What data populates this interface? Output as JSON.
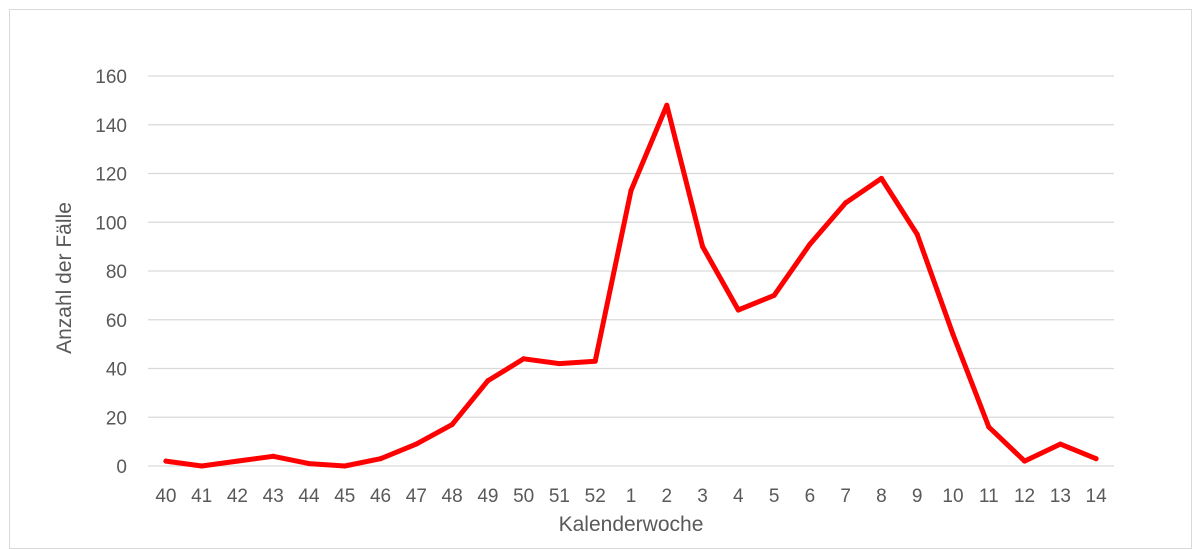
{
  "chart_data": {
    "type": "line",
    "title": "",
    "xlabel": "Kalenderwoche",
    "ylabel": "Anzahl der Fälle",
    "ylim": [
      0,
      160
    ],
    "yticks": [
      0,
      20,
      40,
      60,
      80,
      100,
      120,
      140,
      160
    ],
    "grid": true,
    "categories": [
      "40",
      "41",
      "42",
      "43",
      "44",
      "45",
      "46",
      "47",
      "48",
      "49",
      "50",
      "51",
      "52",
      "1",
      "2",
      "3",
      "4",
      "5",
      "6",
      "7",
      "8",
      "9",
      "10",
      "11",
      "12",
      "13",
      "14"
    ],
    "series": [
      {
        "color": "#ff0000",
        "values": [
          2,
          0,
          2,
          4,
          1,
          0,
          3,
          9,
          17,
          35,
          44,
          42,
          43,
          113,
          148,
          90,
          64,
          70,
          91,
          108,
          118,
          95,
          54,
          16,
          2,
          9,
          3
        ]
      }
    ]
  }
}
